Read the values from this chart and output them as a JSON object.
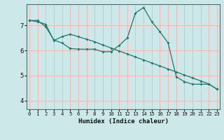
{
  "title": "",
  "xlabel": "Humidex (Indice chaleur)",
  "ylabel": "",
  "bg_color": "#cce8e8",
  "grid_color": "#f0b8b8",
  "line_color": "#1a7a6e",
  "x_ticks": [
    0,
    1,
    2,
    3,
    4,
    5,
    6,
    7,
    8,
    9,
    10,
    11,
    12,
    13,
    14,
    15,
    16,
    17,
    18,
    19,
    20,
    21,
    22,
    23
  ],
  "y_ticks": [
    4,
    5,
    6,
    7
  ],
  "xlim": [
    -0.3,
    23.3
  ],
  "ylim": [
    3.65,
    7.85
  ],
  "series1_x": [
    0,
    1,
    2,
    3,
    4,
    5,
    6,
    7,
    8,
    9,
    10,
    11,
    12,
    13,
    14,
    15,
    16,
    17,
    18,
    19,
    20,
    21,
    22,
    23
  ],
  "series1_y": [
    7.2,
    7.2,
    6.95,
    6.42,
    6.3,
    6.08,
    6.05,
    6.05,
    6.05,
    5.95,
    5.95,
    6.2,
    6.5,
    7.5,
    7.72,
    7.15,
    6.75,
    6.3,
    4.95,
    4.75,
    4.65,
    4.65,
    4.65,
    4.45
  ],
  "series2_x": [
    0,
    1,
    2,
    3,
    4,
    5,
    6,
    7,
    8,
    9,
    10,
    11,
    12,
    13,
    14,
    15,
    16,
    17,
    18,
    19,
    20,
    21,
    22,
    23
  ],
  "series2_y": [
    7.2,
    7.15,
    7.05,
    6.4,
    6.55,
    6.65,
    6.55,
    6.45,
    6.35,
    6.22,
    6.1,
    5.98,
    5.86,
    5.74,
    5.62,
    5.5,
    5.38,
    5.26,
    5.14,
    5.02,
    4.9,
    4.78,
    4.66,
    4.45
  ]
}
